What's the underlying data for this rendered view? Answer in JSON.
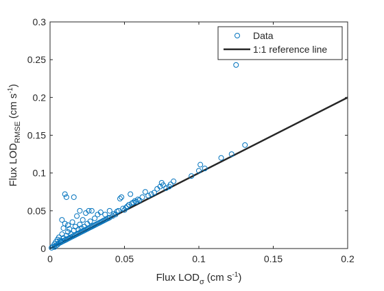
{
  "chart_data": {
    "type": "scatter",
    "title": "",
    "xlabel": {
      "main": "Flux LOD",
      "sub": "σ",
      "unit": "(cm s",
      "sup": "-1",
      "close": ")"
    },
    "ylabel": {
      "main": "Flux LOD",
      "sub": "RMSE",
      "unit": "(cm s",
      "sup": "-1",
      "close": ")"
    },
    "xlim": [
      0,
      0.2
    ],
    "ylim": [
      0,
      0.3
    ],
    "xticks": [
      0,
      0.05,
      0.1,
      0.15,
      0.2
    ],
    "xtick_labels": [
      "0",
      "0.05",
      "0.1",
      "0.15",
      "0.2"
    ],
    "yticks": [
      0,
      0.05,
      0.1,
      0.15,
      0.2,
      0.25,
      0.3
    ],
    "ytick_labels": [
      "0",
      "0.05",
      "0.1",
      "0.15",
      "0.2",
      "0.25",
      "0.3"
    ],
    "grid": false,
    "legend_position": "top-right",
    "series": [
      {
        "name": "Data",
        "kind": "markers",
        "marker": "open-circle",
        "color": "#0072BD",
        "points": [
          [
            0.001,
            0.001
          ],
          [
            0.002,
            0.003
          ],
          [
            0.003,
            0.002
          ],
          [
            0.003,
            0.006
          ],
          [
            0.004,
            0.004
          ],
          [
            0.004,
            0.009
          ],
          [
            0.005,
            0.005
          ],
          [
            0.005,
            0.012
          ],
          [
            0.006,
            0.007
          ],
          [
            0.006,
            0.015
          ],
          [
            0.007,
            0.008
          ],
          [
            0.007,
            0.011
          ],
          [
            0.008,
            0.009
          ],
          [
            0.008,
            0.019
          ],
          [
            0.008,
            0.038
          ],
          [
            0.009,
            0.01
          ],
          [
            0.009,
            0.014
          ],
          [
            0.009,
            0.027
          ],
          [
            0.01,
            0.011
          ],
          [
            0.01,
            0.033
          ],
          [
            0.01,
            0.072
          ],
          [
            0.011,
            0.012
          ],
          [
            0.011,
            0.017
          ],
          [
            0.011,
            0.068
          ],
          [
            0.012,
            0.013
          ],
          [
            0.012,
            0.022
          ],
          [
            0.012,
            0.031
          ],
          [
            0.013,
            0.014
          ],
          [
            0.013,
            0.026
          ],
          [
            0.014,
            0.015
          ],
          [
            0.014,
            0.019
          ],
          [
            0.015,
            0.016
          ],
          [
            0.015,
            0.035
          ],
          [
            0.016,
            0.017
          ],
          [
            0.016,
            0.024
          ],
          [
            0.016,
            0.068
          ],
          [
            0.017,
            0.018
          ],
          [
            0.017,
            0.029
          ],
          [
            0.018,
            0.019
          ],
          [
            0.018,
            0.043
          ],
          [
            0.019,
            0.02
          ],
          [
            0.019,
            0.025
          ],
          [
            0.02,
            0.021
          ],
          [
            0.02,
            0.032
          ],
          [
            0.02,
            0.05
          ],
          [
            0.021,
            0.022
          ],
          [
            0.021,
            0.027
          ],
          [
            0.022,
            0.023
          ],
          [
            0.022,
            0.038
          ],
          [
            0.023,
            0.024
          ],
          [
            0.023,
            0.029
          ],
          [
            0.024,
            0.025
          ],
          [
            0.024,
            0.047
          ],
          [
            0.025,
            0.026
          ],
          [
            0.025,
            0.033
          ],
          [
            0.026,
            0.027
          ],
          [
            0.026,
            0.05
          ],
          [
            0.027,
            0.028
          ],
          [
            0.027,
            0.036
          ],
          [
            0.028,
            0.029
          ],
          [
            0.028,
            0.05
          ],
          [
            0.029,
            0.03
          ],
          [
            0.03,
            0.031
          ],
          [
            0.03,
            0.04
          ],
          [
            0.031,
            0.032
          ],
          [
            0.032,
            0.033
          ],
          [
            0.032,
            0.045
          ],
          [
            0.033,
            0.034
          ],
          [
            0.034,
            0.035
          ],
          [
            0.034,
            0.048
          ],
          [
            0.035,
            0.036
          ],
          [
            0.036,
            0.037
          ],
          [
            0.037,
            0.038
          ],
          [
            0.037,
            0.045
          ],
          [
            0.038,
            0.039
          ],
          [
            0.039,
            0.04
          ],
          [
            0.04,
            0.041
          ],
          [
            0.04,
            0.05
          ],
          [
            0.042,
            0.043
          ],
          [
            0.043,
            0.046
          ],
          [
            0.044,
            0.045
          ],
          [
            0.045,
            0.049
          ],
          [
            0.046,
            0.05
          ],
          [
            0.047,
            0.066
          ],
          [
            0.048,
            0.068
          ],
          [
            0.049,
            0.053
          ],
          [
            0.05,
            0.051
          ],
          [
            0.051,
            0.054
          ],
          [
            0.052,
            0.056
          ],
          [
            0.053,
            0.058
          ],
          [
            0.054,
            0.072
          ],
          [
            0.055,
            0.06
          ],
          [
            0.056,
            0.061
          ],
          [
            0.057,
            0.063
          ],
          [
            0.058,
            0.062
          ],
          [
            0.059,
            0.065
          ],
          [
            0.06,
            0.064
          ],
          [
            0.062,
            0.068
          ],
          [
            0.064,
            0.075
          ],
          [
            0.066,
            0.07
          ],
          [
            0.068,
            0.072
          ],
          [
            0.07,
            0.074
          ],
          [
            0.072,
            0.079
          ],
          [
            0.074,
            0.082
          ],
          [
            0.075,
            0.087
          ],
          [
            0.076,
            0.084
          ],
          [
            0.078,
            0.08
          ],
          [
            0.08,
            0.082
          ],
          [
            0.081,
            0.085
          ],
          [
            0.083,
            0.089
          ],
          [
            0.095,
            0.096
          ],
          [
            0.1,
            0.103
          ],
          [
            0.101,
            0.111
          ],
          [
            0.104,
            0.106
          ],
          [
            0.115,
            0.12
          ],
          [
            0.122,
            0.125
          ],
          [
            0.125,
            0.243
          ],
          [
            0.131,
            0.137
          ]
        ]
      },
      {
        "name": "1:1 reference line",
        "kind": "line",
        "color": "#262626",
        "x": [
          0,
          0.2
        ],
        "y": [
          0,
          0.2
        ]
      }
    ]
  }
}
